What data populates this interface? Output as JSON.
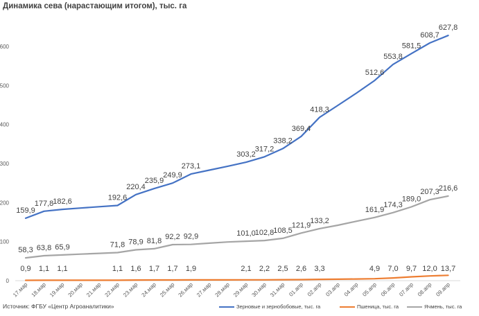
{
  "title": "Динамика сева (нарастающим итогом), тыс. га",
  "source": "Источник:  ФГБУ «Центр Агроаналитики»",
  "chart_data": {
    "type": "line",
    "title": "Динамика сева (нарастающим итогом), тыс. га",
    "categories": [
      "17.мар",
      "18.мар",
      "19.мар",
      "20.мар",
      "21.мар",
      "22.мар",
      "23.мар",
      "24.мар",
      "25.мар",
      "26.мар",
      "27.мар",
      "28.мар",
      "29.мар",
      "30.мар",
      "31.мар",
      "01.апр",
      "02.апр",
      "03.апр",
      "04.апр",
      "05.апр",
      "06.апр",
      "07.апр",
      "08.апр",
      "09.апр"
    ],
    "yticks": [
      "0",
      "100",
      "200",
      "300",
      "400",
      "500",
      "600"
    ],
    "ylim": [
      0,
      680
    ],
    "grid": false,
    "legend_position": "bottom",
    "series": [
      {
        "name": "Зерновые и зернобобовые, тыс. га",
        "color": "#4472c4",
        "values": [
          159.9,
          177.8,
          182.6,
          186.0,
          189.3,
          192.6,
          220.4,
          235.9,
          249.9,
          273.1,
          283.0,
          293.0,
          303.2,
          317.2,
          338.2,
          369.4,
          418.3,
          449.0,
          480.0,
          512.6,
          553.8,
          581.5,
          608.7,
          627.8
        ],
        "labels": [
          "159,9",
          "177,8",
          "182,6",
          null,
          null,
          "192,6",
          "220,4",
          "235,9",
          "249,9",
          "273,1",
          null,
          null,
          "303,2",
          "317,2",
          "338,2",
          "369,4",
          "418,3",
          null,
          null,
          "512,6",
          "553,8",
          "581,5",
          "608,7",
          "627,8"
        ]
      },
      {
        "name": "Пшеница, тыс. га",
        "color": "#ed7d31",
        "values": [
          0.9,
          1.1,
          1.1,
          1.1,
          1.1,
          1.1,
          1.6,
          1.7,
          1.7,
          1.9,
          2.0,
          2.0,
          2.1,
          2.2,
          2.5,
          2.6,
          3.3,
          3.8,
          4.3,
          4.9,
          7.0,
          9.7,
          12.0,
          13.7
        ],
        "labels": [
          "0,9",
          "1,1",
          "1,1",
          null,
          null,
          "1,1",
          "1,6",
          "1,7",
          "1,7",
          "1,9",
          null,
          null,
          "2,1",
          "2,2",
          "2,5",
          "2,6",
          "3,3",
          null,
          null,
          "4,9",
          "7,0",
          "9,7",
          "12,0",
          "13,7"
        ]
      },
      {
        "name": "Ячмень, тыс. га",
        "color": "#a5a5a5",
        "values": [
          58.3,
          63.8,
          65.9,
          68.0,
          70.0,
          71.8,
          78.9,
          81.8,
          92.2,
          92.9,
          96.0,
          99.0,
          101.0,
          102.8,
          108.5,
          121.9,
          133.2,
          142.0,
          152.0,
          161.9,
          174.3,
          189.0,
          207.3,
          216.6
        ],
        "labels": [
          "58,3",
          "63,8",
          "65,9",
          null,
          null,
          "71,8",
          "78,9",
          "81,8",
          "92,2",
          "92,9",
          null,
          null,
          "101,0",
          "102,8",
          "108,5",
          "121,9",
          "133,2",
          null,
          null,
          "161,9",
          "174,3",
          "189,0",
          "207,3",
          "216,6"
        ]
      }
    ]
  }
}
